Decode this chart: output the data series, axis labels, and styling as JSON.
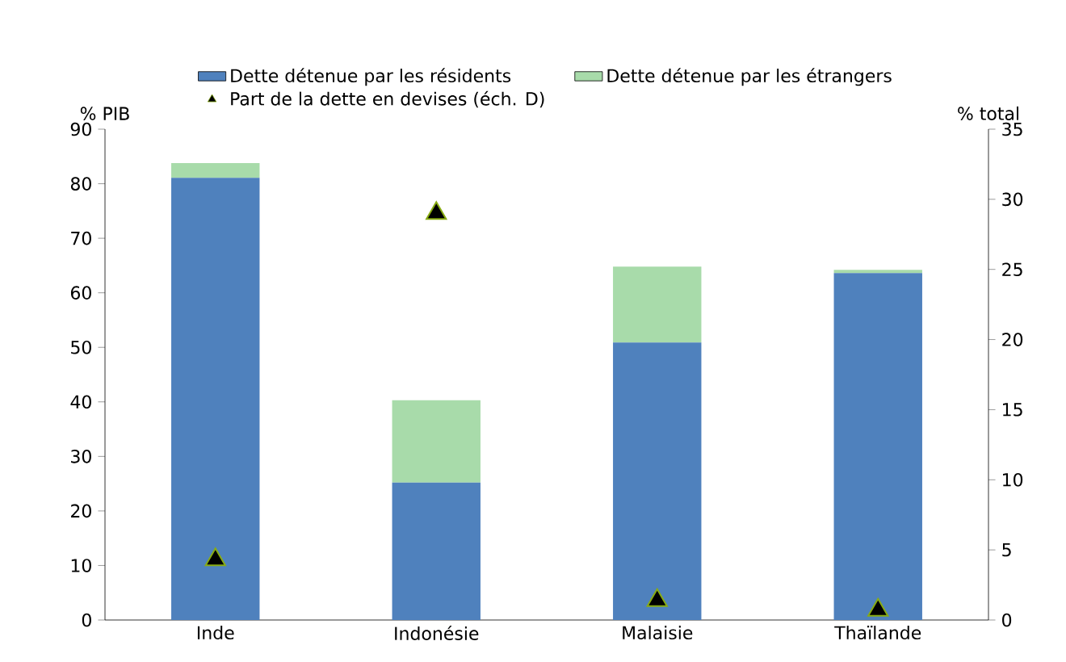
{
  "chart_data": {
    "type": "bar",
    "stacked": true,
    "categories": [
      "Inde",
      "Indonésie",
      "Malaisie",
      "Thaïlande"
    ],
    "ylabel": "% PIB",
    "y2label": "% total",
    "series": [
      {
        "name": "Dette détenue par les résidents",
        "color": "#4f81bd",
        "values": [
          81.1,
          25.2,
          50.9,
          63.6
        ]
      },
      {
        "name": "Dette détenue par les étrangers",
        "color": "#a8dbaa",
        "values": [
          2.7,
          15.1,
          13.9,
          0.6
        ]
      },
      {
        "name": "Part de la dette en devises (éch. D)",
        "type": "scatter",
        "axis": "y2",
        "marker": "triangle",
        "color": "#000000",
        "values": [
          4.3,
          29.0,
          1.4,
          0.7
        ]
      }
    ],
    "ylim": [
      0,
      90
    ],
    "yticks": [
      0,
      10,
      20,
      30,
      40,
      50,
      60,
      70,
      80,
      90
    ],
    "y2lim": [
      0,
      35
    ],
    "y2ticks": [
      0,
      5,
      10,
      15,
      20,
      25,
      30,
      35
    ],
    "legend": "top",
    "grid": false
  }
}
